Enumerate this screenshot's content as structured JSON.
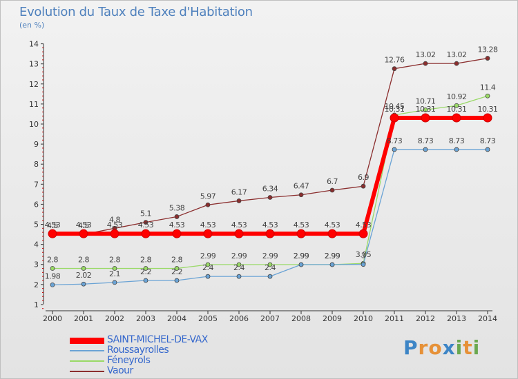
{
  "header": {
    "title": "Evolution du Taux de Taxe d'Habitation",
    "subtitle": "(en %)"
  },
  "logo": {
    "text": "Proxiti",
    "letters": [
      "P",
      "r",
      "o",
      "x",
      "i",
      "t",
      "i"
    ],
    "colors": [
      "#3d85c6",
      "#e69138",
      "#e69138",
      "#3d85c6",
      "#6aa84f",
      "#e69138",
      "#6aa84f"
    ]
  },
  "chart_data": {
    "type": "line",
    "title": "Evolution du Taux de Taxe d'Habitation",
    "subtitle": "(en %)",
    "ylim": [
      0,
      14
    ],
    "y_ticks": [
      1,
      2,
      3,
      4,
      5,
      6,
      7,
      8,
      9,
      10,
      11,
      12,
      13,
      14
    ],
    "x": [
      "2000",
      "2001",
      "2002",
      "2003",
      "2004",
      "2005",
      "2006",
      "2007",
      "2008",
      "2009",
      "2010",
      "2011",
      "2012",
      "2013",
      "2014"
    ],
    "series": [
      {
        "name": "Vaour",
        "color": "#8b2e2e",
        "values": [
          4.5,
          4.5,
          4.8,
          5.1,
          5.38,
          5.97,
          6.17,
          6.34,
          6.47,
          6.7,
          6.9,
          12.76,
          13.02,
          13.02,
          13.28
        ],
        "labels": [
          "4.5",
          "4.5",
          "4.8",
          "5.1",
          "5.38",
          "5.97",
          "6.17",
          "6.34",
          "6.47",
          "6.7",
          "6.9",
          "12.76",
          "13.02",
          "13.02",
          "13.28"
        ]
      },
      {
        "name": "Féneyrols",
        "color": "#99d966",
        "values": [
          2.8,
          2.8,
          2.8,
          2.8,
          2.8,
          2.99,
          2.99,
          2.99,
          2.99,
          2.99,
          3.05,
          10.45,
          10.71,
          10.92,
          11.4
        ],
        "labels": [
          "2.8",
          "2.8",
          "2.8",
          "2.8",
          "2.8",
          "2.99",
          "2.99",
          "2.99",
          "2.99",
          "2.99",
          "3.05",
          "10.45",
          "10.71",
          "10.92",
          "11.4"
        ]
      },
      {
        "name": "Roussayrolles",
        "color": "#6aa3d5",
        "values": [
          1.98,
          2.02,
          2.1,
          2.2,
          2.2,
          2.4,
          2.4,
          2.4,
          2.99,
          2.99,
          3.0,
          8.73,
          8.73,
          8.73,
          8.73
        ],
        "labels": [
          "1.98",
          "2.02",
          "2.1",
          "2.2",
          "2.2",
          "2.4",
          "2.4",
          "2.4",
          "2.99",
          "2.99",
          "3",
          "8.73",
          "8.73",
          "8.73",
          "8.73"
        ]
      },
      {
        "name": "SAINT-MICHEL-DE-VAX",
        "color": "#ff0000",
        "values": [
          4.53,
          4.53,
          4.53,
          4.53,
          4.53,
          4.53,
          4.53,
          4.53,
          4.53,
          4.53,
          4.53,
          10.31,
          10.31,
          10.31,
          10.31
        ],
        "labels": [
          "4.53",
          "4.53",
          "4.53",
          "4.53",
          "4.53",
          "4.53",
          "4.53",
          "4.53",
          "4.53",
          "4.53",
          "4.53",
          "10.31",
          "10.31",
          "10.31",
          "10.31"
        ]
      }
    ],
    "legend_order": [
      "SAINT-MICHEL-DE-VAX",
      "Roussayrolles",
      "Féneyrols",
      "Vaour"
    ],
    "legend_position": "bottom-left",
    "grid": false
  }
}
